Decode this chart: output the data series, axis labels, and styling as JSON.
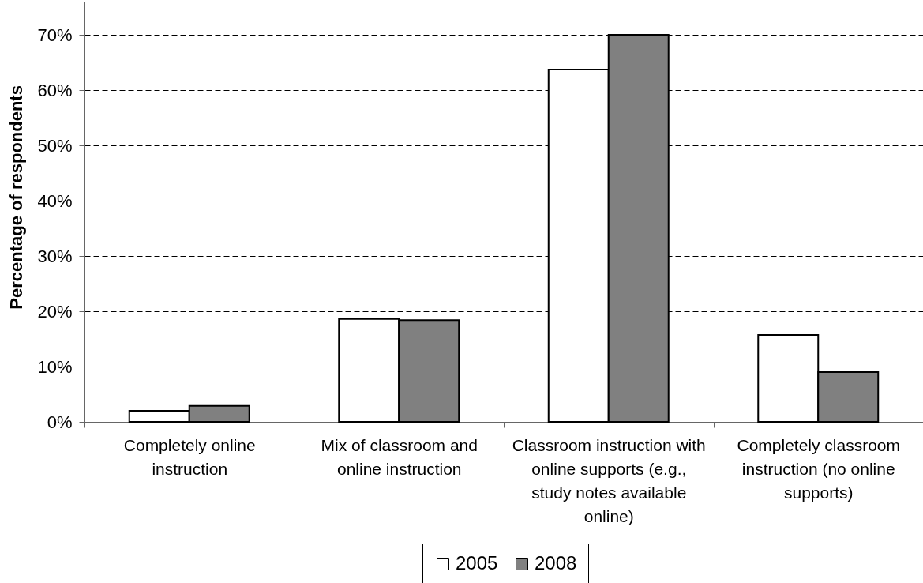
{
  "chart_data": {
    "type": "bar",
    "ylabel": "Percentage of respondents",
    "categories": [
      "Completely online instruction",
      "Mix of classroom and online instruction",
      "Classroom instruction with online supports (e.g., study notes available online)",
      "Completely classroom instruction (no online supports)"
    ],
    "series": [
      {
        "name": "2005",
        "color": "#ffffff",
        "values": [
          2.0,
          18.6,
          63.7,
          15.7
        ]
      },
      {
        "name": "2008",
        "color": "#808080",
        "values": [
          2.9,
          18.4,
          70.0,
          9.0
        ]
      }
    ],
    "ylim": [
      0,
      76
    ],
    "yticks": [
      {
        "value": 0,
        "label": "0%"
      },
      {
        "value": 10,
        "label": "10%"
      },
      {
        "value": 20,
        "label": "20%"
      },
      {
        "value": 30,
        "label": "30%"
      },
      {
        "value": 40,
        "label": "40%"
      },
      {
        "value": 50,
        "label": "50%"
      },
      {
        "value": 60,
        "label": "60%"
      },
      {
        "value": 70,
        "label": "70%"
      }
    ],
    "grid": "y",
    "legend": "bottom"
  }
}
